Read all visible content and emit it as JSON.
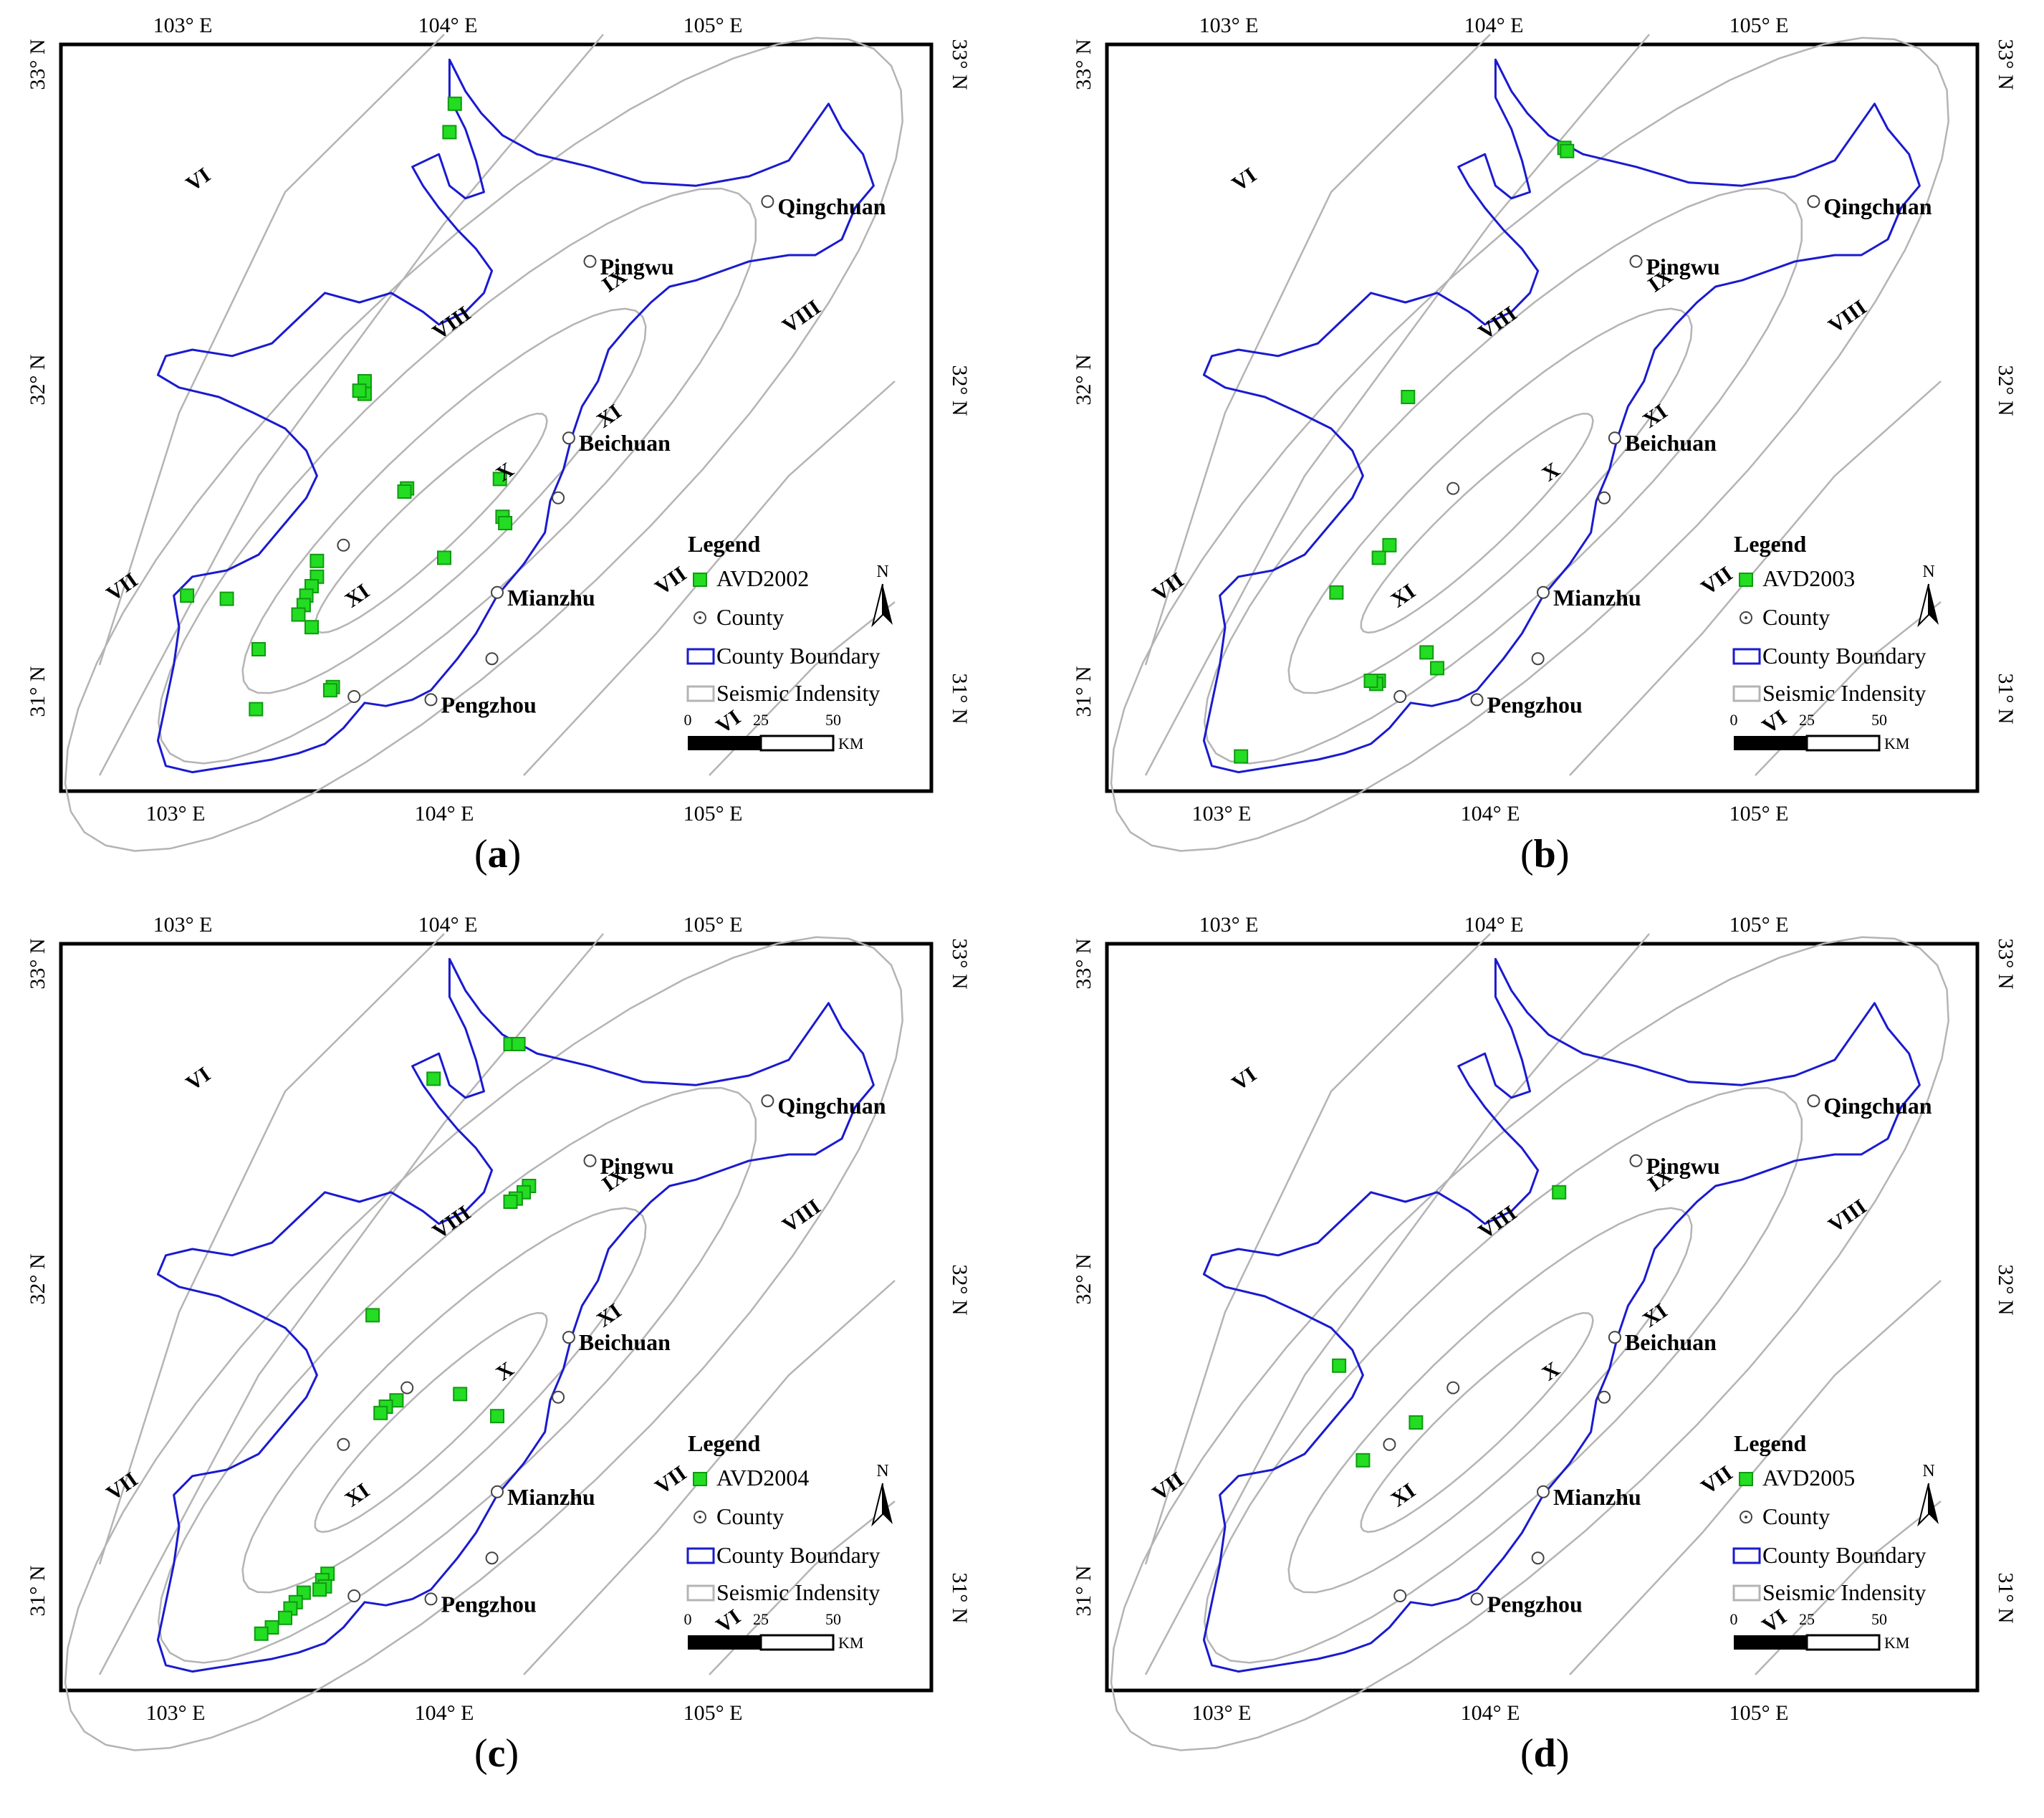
{
  "panels": [
    {
      "id": "a",
      "caption_label": "a",
      "legend_title": "Legend",
      "legend_points": "AVD2002",
      "legend_county": "County",
      "legend_boundary": "County Boundary",
      "legend_intensity": "Seismic Indensity",
      "scale_ticks": [
        "0",
        "25",
        "50"
      ],
      "scale_unit": "KM",
      "north": "N",
      "lon_labels": [
        "103° E",
        "104° E",
        "105° E"
      ],
      "lat_labels": [
        "33° N",
        "32° N",
        "31° N"
      ],
      "counties": [
        "Qingchuan",
        "Pingwu",
        "Beichuan",
        "Mianzhu",
        "Pengzhou"
      ],
      "intensity_labels": [
        "VI",
        "VII",
        "VIII",
        "IX",
        "X",
        "XI"
      ],
      "points": [
        [
          104.04,
          32.88
        ],
        [
          104.02,
          32.79
        ],
        [
          103.7,
          32.0
        ],
        [
          103.7,
          31.96
        ],
        [
          103.68,
          31.97
        ],
        [
          103.86,
          31.66
        ],
        [
          103.85,
          31.65
        ],
        [
          104.21,
          31.69
        ],
        [
          104.22,
          31.57
        ],
        [
          104.23,
          31.55
        ],
        [
          104.0,
          31.44
        ],
        [
          103.52,
          31.43
        ],
        [
          103.52,
          31.38
        ],
        [
          103.5,
          31.35
        ],
        [
          103.48,
          31.32
        ],
        [
          103.47,
          31.29
        ],
        [
          103.45,
          31.26
        ],
        [
          103.5,
          31.22
        ],
        [
          103.03,
          31.32
        ],
        [
          103.18,
          31.31
        ],
        [
          103.3,
          31.15
        ],
        [
          103.58,
          31.03
        ],
        [
          103.57,
          31.02
        ],
        [
          103.29,
          30.96
        ]
      ]
    },
    {
      "id": "b",
      "caption_label": "b",
      "legend_title": "Legend",
      "legend_points": "AVD2003",
      "legend_county": "County",
      "legend_boundary": "County Boundary",
      "legend_intensity": "Seismic Indensity",
      "scale_ticks": [
        "0",
        "25",
        "50"
      ],
      "scale_unit": "KM",
      "north": "N",
      "lon_labels": [
        "103° E",
        "104° E",
        "105° E"
      ],
      "lat_labels": [
        "33° N",
        "32° N",
        "31° N"
      ],
      "counties": [
        "Qingchuan",
        "Pingwu",
        "Beichuan",
        "Mianzhu",
        "Pengzhou"
      ],
      "intensity_labels": [
        "VI",
        "VII",
        "VIII",
        "IX",
        "X",
        "XI"
      ],
      "points": [
        [
          104.28,
          32.74
        ],
        [
          104.29,
          32.73
        ],
        [
          103.69,
          31.95
        ],
        [
          103.62,
          31.48
        ],
        [
          103.58,
          31.44
        ],
        [
          103.42,
          31.33
        ],
        [
          103.76,
          31.14
        ],
        [
          103.8,
          31.09
        ],
        [
          103.58,
          31.05
        ],
        [
          103.57,
          31.04
        ],
        [
          103.55,
          31.05
        ],
        [
          103.06,
          30.81
        ]
      ]
    },
    {
      "id": "c",
      "caption_label": "c",
      "legend_title": "Legend",
      "legend_points": "AVD2004",
      "legend_county": "County",
      "legend_boundary": "County Boundary",
      "legend_intensity": "Seismic Indensity",
      "scale_ticks": [
        "0",
        "25",
        "50"
      ],
      "scale_unit": "KM",
      "north": "N",
      "lon_labels": [
        "103° E",
        "104° E",
        "105° E"
      ],
      "lat_labels": [
        "33° N",
        "32° N",
        "31° N"
      ],
      "counties": [
        "Qingchuan",
        "Pingwu",
        "Beichuan",
        "Mianzhu",
        "Pengzhou"
      ],
      "intensity_labels": [
        "VI",
        "VII",
        "VIII",
        "IX",
        "X",
        "XI"
      ],
      "points": [
        [
          104.25,
          32.75
        ],
        [
          104.28,
          32.75
        ],
        [
          103.96,
          32.64
        ],
        [
          104.32,
          32.3
        ],
        [
          104.3,
          32.28
        ],
        [
          104.27,
          32.26
        ],
        [
          104.25,
          32.25
        ],
        [
          103.73,
          31.89
        ],
        [
          103.82,
          31.62
        ],
        [
          103.78,
          31.6
        ],
        [
          103.76,
          31.58
        ],
        [
          104.06,
          31.64
        ],
        [
          104.2,
          31.57
        ],
        [
          103.56,
          31.07
        ],
        [
          103.54,
          31.05
        ],
        [
          103.55,
          31.03
        ],
        [
          103.53,
          31.02
        ],
        [
          103.47,
          31.01
        ],
        [
          103.44,
          30.98
        ],
        [
          103.42,
          30.96
        ],
        [
          103.4,
          30.93
        ],
        [
          103.35,
          30.9
        ],
        [
          103.31,
          30.88
        ]
      ]
    },
    {
      "id": "d",
      "caption_label": "d",
      "legend_title": "Legend",
      "legend_points": "AVD2005",
      "legend_county": "County",
      "legend_boundary": "County Boundary",
      "legend_intensity": "Seismic Indensity",
      "scale_ticks": [
        "0",
        "25",
        "50"
      ],
      "scale_unit": "KM",
      "north": "N",
      "lon_labels": [
        "103° E",
        "104° E",
        "105° E"
      ],
      "lat_labels": [
        "33° N",
        "32° N",
        "31° N"
      ],
      "counties": [
        "Qingchuan",
        "Pingwu",
        "Beichuan",
        "Mianzhu",
        "Pengzhou"
      ],
      "intensity_labels": [
        "VI",
        "VII",
        "VIII",
        "IX",
        "X",
        "XI"
      ],
      "points": [
        [
          104.26,
          32.28
        ],
        [
          103.43,
          31.73
        ],
        [
          103.72,
          31.55
        ],
        [
          103.52,
          31.43
        ]
      ]
    }
  ],
  "colors": {
    "points": "#22dd22",
    "boundary": "#1a1ad0",
    "intensity": "#b4b4b4",
    "frame": "#000000"
  }
}
